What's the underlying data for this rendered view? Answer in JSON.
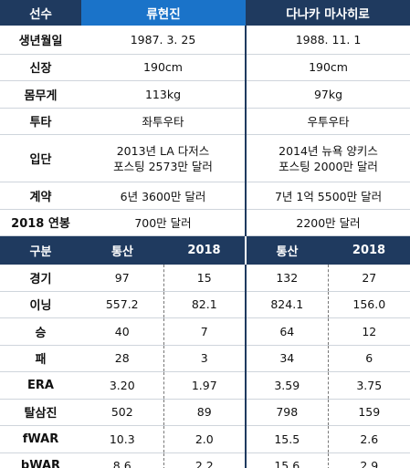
{
  "header": {
    "label": "선수",
    "player1": "류현진",
    "player2": "다나카 마사히로"
  },
  "profile": [
    {
      "label": "생년월일",
      "p1": "1987. 3. 25",
      "p2": "1988. 11. 1"
    },
    {
      "label": "신장",
      "p1": "190cm",
      "p2": "190cm"
    },
    {
      "label": "몸무게",
      "p1": "113kg",
      "p2": "97kg"
    },
    {
      "label": "투타",
      "p1": "좌투우타",
      "p2": "우투우타"
    },
    {
      "label": "입단",
      "p1": "2013년 LA 다저스\n포스팅 2573만 달러",
      "p2": "2014년 뉴욕 양키스\n포스팅 2000만 달러"
    },
    {
      "label": "계약",
      "p1": "6년 3600만 달러",
      "p2": "7년 1억 5500만 달러"
    },
    {
      "label": "2018 연봉",
      "p1": "700만 달러",
      "p2": "2200만 달러"
    }
  ],
  "stats_header": {
    "label": "구분",
    "p1_total": "통산",
    "p1_2018": "2018",
    "p2_total": "통산",
    "p2_2018": "2018"
  },
  "stats": [
    {
      "label": "경기",
      "p1_total": "97",
      "p1_2018": "15",
      "p2_total": "132",
      "p2_2018": "27"
    },
    {
      "label": "이닝",
      "p1_total": "557.2",
      "p1_2018": "82.1",
      "p2_total": "824.1",
      "p2_2018": "156.0"
    },
    {
      "label": "승",
      "p1_total": "40",
      "p1_2018": "7",
      "p2_total": "64",
      "p2_2018": "12"
    },
    {
      "label": "패",
      "p1_total": "28",
      "p1_2018": "3",
      "p2_total": "34",
      "p2_2018": "6"
    },
    {
      "label": "ERA",
      "p1_total": "3.20",
      "p1_2018": "1.97",
      "p2_total": "3.59",
      "p2_2018": "3.75"
    },
    {
      "label": "탈삼진",
      "p1_total": "502",
      "p1_2018": "89",
      "p2_total": "798",
      "p2_2018": "159"
    },
    {
      "label": "fWAR",
      "p1_total": "10.3",
      "p1_2018": "2.0",
      "p2_total": "15.5",
      "p2_2018": "2.6"
    },
    {
      "label": "bWAR",
      "p1_total": "8.6",
      "p1_2018": "2.2",
      "p2_total": "15.6",
      "p2_2018": "2.9"
    }
  ],
  "colors": {
    "dark_navy": "#1f3a5f",
    "accent_blue": "#1a73c9"
  }
}
